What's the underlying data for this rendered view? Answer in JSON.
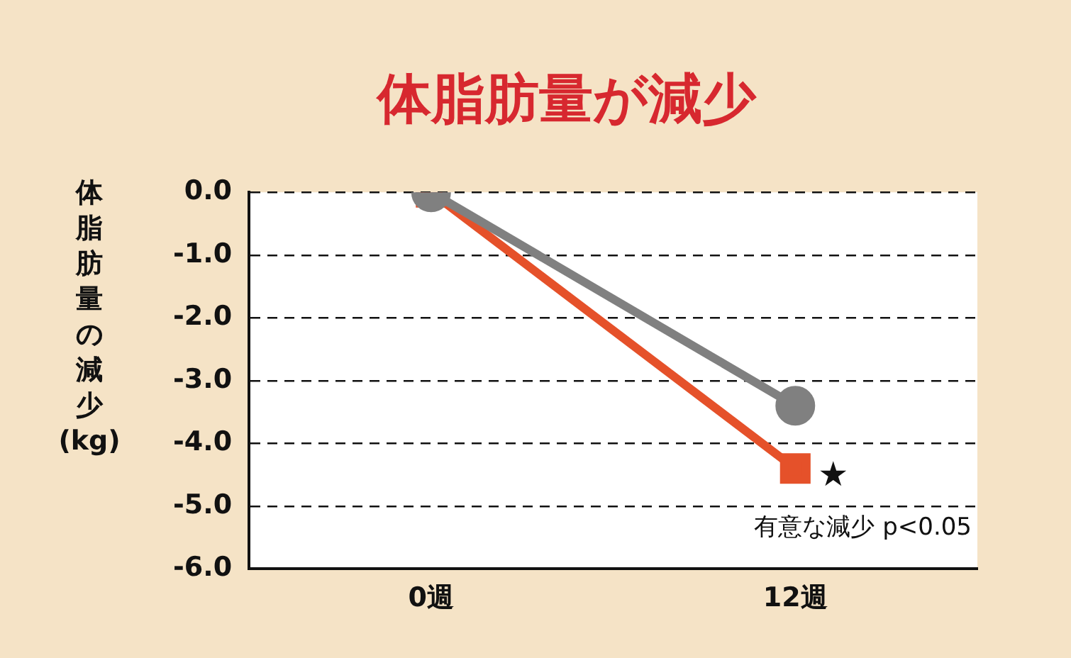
{
  "chart_data": {
    "type": "line",
    "title": "体脂肪量が減少",
    "ylabel": "体脂肪量の減少(kg)",
    "categories": [
      "0週",
      "12週"
    ],
    "series": [
      {
        "color": "#808080",
        "values": [
          0,
          -3.4
        ],
        "marker": "circle"
      },
      {
        "color": "#e5512a",
        "values": [
          0,
          -4.4
        ],
        "marker": "square"
      }
    ],
    "ylim": [
      -6,
      0
    ],
    "yticks": [
      {
        "value": 0,
        "label": "0.0"
      },
      {
        "value": -1,
        "label": "-1.0"
      },
      {
        "value": -2,
        "label": "-2.0"
      },
      {
        "value": -3,
        "label": "-3.0"
      },
      {
        "value": -4,
        "label": "-4.0"
      },
      {
        "value": -5,
        "label": "-5.0"
      },
      {
        "value": -6,
        "label": "-6.0"
      }
    ],
    "grid": "y",
    "legend": false,
    "annotations": [
      {
        "text": "★",
        "x": "12週",
        "y": -4.4
      },
      "有意な減少 p<0.05"
    ]
  }
}
